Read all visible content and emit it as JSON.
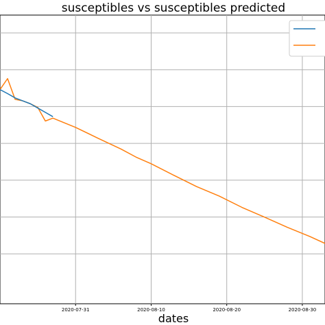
{
  "chart_data": {
    "type": "line",
    "title": "susceptibles vs susceptibles predicted",
    "xlabel": "dates",
    "ylabel": "",
    "x_ticks": [
      "2020-07-31",
      "2020-08-10",
      "2020-08-20",
      "2020-08-30"
    ],
    "xlim": [
      "2020-07-21",
      "2020-09-02"
    ],
    "ylim": [
      0,
      1
    ],
    "grid": true,
    "legend_placement": "top-right",
    "series": [
      {
        "color": "#1f77b4",
        "x": [
          "2020-07-21",
          "2020-07-22",
          "2020-07-23",
          "2020-07-24",
          "2020-07-25",
          "2020-07-26",
          "2020-07-27",
          "2020-07-28"
        ],
        "values": [
          0.742,
          0.728,
          0.713,
          0.703,
          0.693,
          0.678,
          0.663,
          0.648
        ]
      },
      {
        "color": "#ff7f0e",
        "x": [
          "2020-07-21",
          "2020-07-22",
          "2020-07-23",
          "2020-07-24",
          "2020-07-25",
          "2020-07-26",
          "2020-07-27",
          "2020-07-28",
          "2020-07-31",
          "2020-08-03",
          "2020-08-06",
          "2020-08-08",
          "2020-08-10",
          "2020-08-13",
          "2020-08-16",
          "2020-08-19",
          "2020-08-22",
          "2020-08-25",
          "2020-08-28",
          "2020-08-31",
          "2020-09-02"
        ],
        "values": [
          0.742,
          0.78,
          0.708,
          0.703,
          0.693,
          0.68,
          0.633,
          0.643,
          0.611,
          0.573,
          0.536,
          0.508,
          0.485,
          0.445,
          0.406,
          0.373,
          0.334,
          0.3,
          0.265,
          0.233,
          0.209
        ]
      }
    ]
  }
}
